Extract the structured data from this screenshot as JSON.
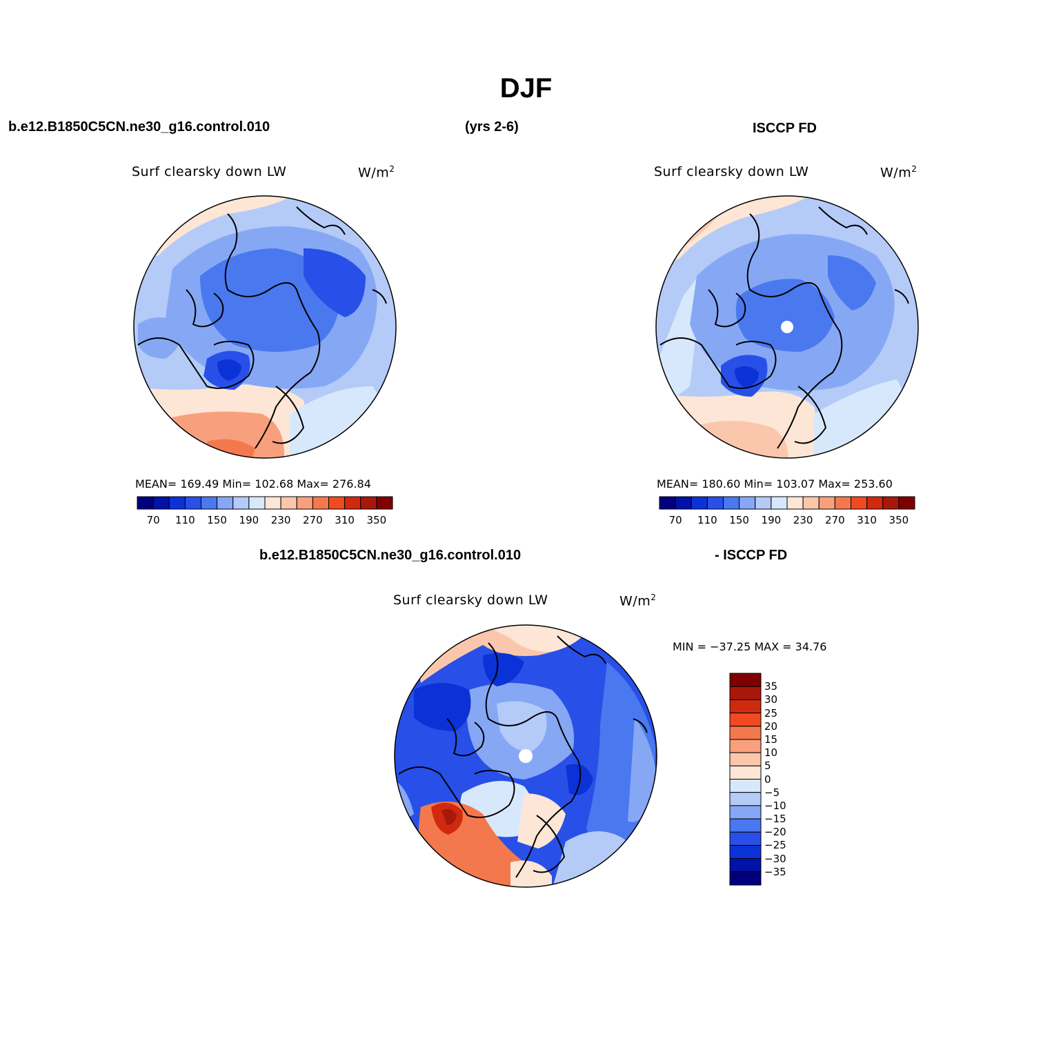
{
  "figure": {
    "title": "DJF",
    "case_name": "b.e12.B1850C5CN.ne30_g16.control.010",
    "years": "(yrs 2-6)",
    "obs_name": "ISCCP FD",
    "diff_case": "b.e12.B1850C5CN.ne30_g16.control.010",
    "diff_obs": "- ISCCP FD"
  },
  "panels": [
    {
      "id": "model",
      "variable": "Surf clearsky down LW",
      "units": "W/m",
      "units_sup": "2",
      "stats": "MEAN=  169.49    Min=  102.68    Max=  276.84",
      "colorbar_ticks": [
        "70",
        "110",
        "150",
        "190",
        "230",
        "270",
        "310",
        "350"
      ],
      "colors": [
        "#00007f",
        "#0012a8",
        "#0a32d6",
        "#2850e8",
        "#4a78ef",
        "#86a8f4",
        "#b4cbf8",
        "#d8e8fc",
        "#fde6d6",
        "#fbc7ac",
        "#f8a07e",
        "#f4784e",
        "#f04a22",
        "#d02a0e",
        "#a8180a",
        "#7f0000"
      ]
    },
    {
      "id": "obs",
      "variable": "Surf clearsky down LW",
      "units": "W/m",
      "units_sup": "2",
      "stats": "MEAN=  180.60    Min=  103.07    Max=  253.60",
      "colorbar_ticks": [
        "70",
        "110",
        "150",
        "190",
        "230",
        "270",
        "310",
        "350"
      ],
      "colors": [
        "#00007f",
        "#0012a8",
        "#0a32d6",
        "#2850e8",
        "#4a78ef",
        "#86a8f4",
        "#b4cbf8",
        "#d8e8fc",
        "#fde6d6",
        "#fbc7ac",
        "#f8a07e",
        "#f4784e",
        "#f04a22",
        "#d02a0e",
        "#a8180a",
        "#7f0000"
      ]
    },
    {
      "id": "diff",
      "variable": "Surf clearsky down LW",
      "units": "W/m",
      "units_sup": "2",
      "stats": "MIN = −37.25  MAX =   34.76",
      "colorbar_ticks": [
        "35",
        "30",
        "25",
        "20",
        "15",
        "10",
        "5",
        "0",
        "−5",
        "−10",
        "−15",
        "−20",
        "−25",
        "−30",
        "−35"
      ],
      "colors": [
        "#7f0000",
        "#a8180a",
        "#d02a0e",
        "#f04a22",
        "#f4784e",
        "#f8a07e",
        "#fbc7ac",
        "#fde6d6",
        "#d8e8fc",
        "#b4cbf8",
        "#86a8f4",
        "#4a78ef",
        "#2850e8",
        "#0a32d6",
        "#0012a8",
        "#00007f"
      ]
    }
  ]
}
